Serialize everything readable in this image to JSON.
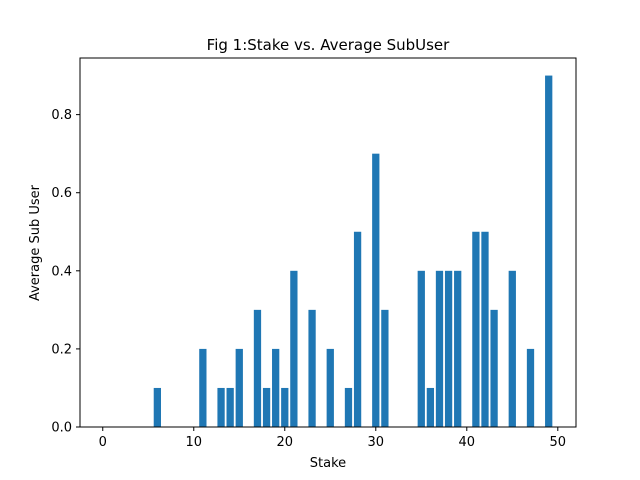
{
  "chart_data": {
    "type": "bar",
    "title": "Fig 1:Stake vs. Average SubUser",
    "xlabel": "Stake",
    "ylabel": "Average Sub User",
    "xlim": [
      -2.5,
      52.0
    ],
    "ylim": [
      0,
      0.945
    ],
    "xticks": [
      0,
      10,
      20,
      30,
      40,
      50
    ],
    "yticks": [
      0.0,
      0.2,
      0.4,
      0.6,
      0.8
    ],
    "ytick_labels": [
      "0.0",
      "0.2",
      "0.4",
      "0.6",
      "0.8"
    ],
    "grid": false,
    "legend": "none",
    "bar_color": "#1f77b4",
    "x": [
      6,
      11,
      13,
      14,
      15,
      17,
      18,
      19,
      20,
      21,
      23,
      25,
      27,
      28,
      30,
      31,
      35,
      36,
      37,
      38,
      39,
      41,
      42,
      43,
      45,
      47,
      49
    ],
    "values": [
      0.1,
      0.2,
      0.1,
      0.1,
      0.2,
      0.3,
      0.1,
      0.2,
      0.1,
      0.4,
      0.3,
      0.2,
      0.1,
      0.5,
      0.7,
      0.3,
      0.4,
      0.1,
      0.4,
      0.4,
      0.4,
      0.5,
      0.5,
      0.3,
      0.4,
      0.2,
      0.9
    ]
  }
}
